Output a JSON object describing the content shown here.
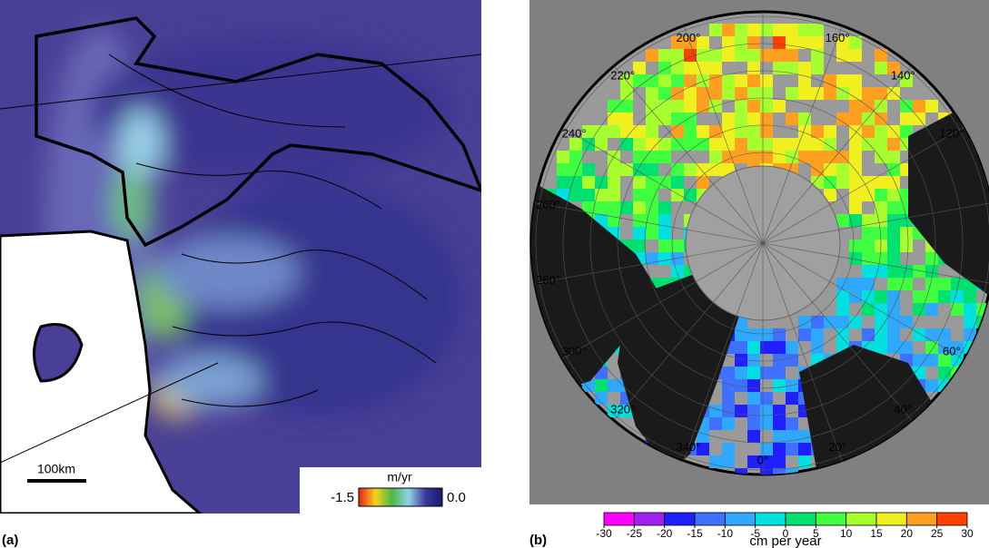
{
  "panel_a": {
    "label": "(a)",
    "scale_bar": "100km",
    "legend": {
      "unit": "m/yr",
      "ticks": [
        -1.5,
        {
          "value": 0,
          "label": "0.0"
        }
      ],
      "colors": [
        "#e8201a",
        "#f7d21c",
        "#4fb84a",
        "#8fd0e8",
        "#3a3a9a",
        "#1a1a70"
      ]
    }
  },
  "panel_b": {
    "label": "(b)",
    "lon_labels": [
      {
        "value": 200,
        "label": "200°"
      },
      {
        "value": 160,
        "label": "160°"
      },
      {
        "value": 140,
        "label": "140°"
      },
      {
        "value": 120,
        "label": "120°"
      },
      {
        "value": 220,
        "label": "220°"
      },
      {
        "value": 240,
        "label": "240°"
      },
      {
        "value": 260,
        "label": "260°"
      },
      {
        "value": 280,
        "label": "280°"
      },
      {
        "value": 300,
        "label": "300°"
      },
      {
        "value": 320,
        "label": "320°"
      },
      {
        "value": 340,
        "label": "340°"
      },
      {
        "value": 0,
        "label": "0°"
      },
      {
        "value": 20,
        "label": "20°"
      },
      {
        "value": 40,
        "label": "40°"
      },
      {
        "value": 60,
        "label": "60°"
      }
    ],
    "colorbar": {
      "label": "cm per year",
      "ticks": [
        -30,
        -25,
        -20,
        -15,
        -10,
        -5,
        0,
        5,
        10,
        15,
        20,
        25,
        30
      ],
      "colors": [
        "#ff00ff",
        "#a020f0",
        "#2020ff",
        "#4070ff",
        "#30a8ff",
        "#00e0e0",
        "#00e070",
        "#40ff40",
        "#a8ff30",
        "#f0f020",
        "#ffa020",
        "#ff4000"
      ]
    }
  }
}
